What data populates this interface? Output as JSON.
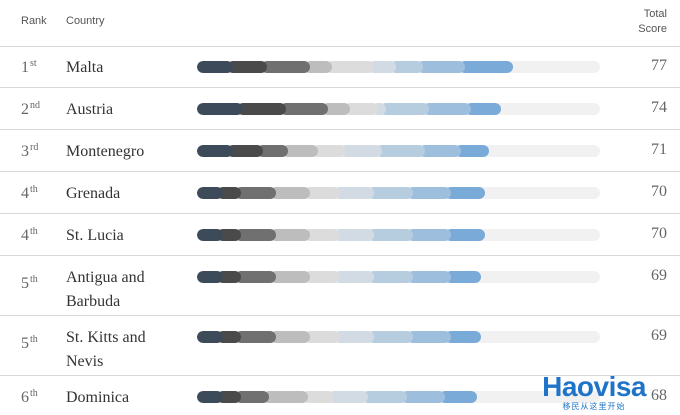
{
  "header": {
    "rank": "Rank",
    "country": "Country",
    "total_line1": "Total",
    "total_line2": "Score"
  },
  "colors": [
    "#3d4a5a",
    "#4a4a4a",
    "#707070",
    "#bdbdbd",
    "#dcdcdc",
    "#d2dbe3",
    "#b6cde0",
    "#9dbfdd",
    "#7aaad8"
  ],
  "chart_data": {
    "type": "bar",
    "max_score": 100,
    "rows": [
      {
        "rank": "1",
        "suffix": "st",
        "country": [
          "Malta"
        ],
        "score": "77",
        "value": 77,
        "segments": [
          7.5,
          8.5,
          10.5,
          5.5,
          10.5,
          5.5,
          6.5,
          10.5,
          12
        ]
      },
      {
        "rank": "2",
        "suffix": "nd",
        "country": [
          "Austria"
        ],
        "score": "74",
        "value": 74,
        "segments": [
          10,
          10.5,
          10.5,
          5.5,
          7,
          2,
          10.5,
          10.5,
          7.5
        ]
      },
      {
        "rank": "3",
        "suffix": "rd",
        "country": [
          "Montenegro"
        ],
        "score": "71",
        "value": 71,
        "segments": [
          7.5,
          7.5,
          6,
          7.5,
          7,
          9,
          10.5,
          9,
          7
        ]
      },
      {
        "rank": "4",
        "suffix": "th",
        "country": [
          "Grenada"
        ],
        "score": "70",
        "value": 70,
        "segments": [
          5,
          4.5,
          8.5,
          8.5,
          7.5,
          8.5,
          9.5,
          9.5,
          8.5
        ]
      },
      {
        "rank": "4",
        "suffix": "th",
        "country": [
          "St. Lucia"
        ],
        "score": "70",
        "value": 70,
        "segments": [
          5,
          4.5,
          8.5,
          8.5,
          7.5,
          8.5,
          9.5,
          9.5,
          8.5
        ]
      },
      {
        "rank": "5",
        "suffix": "th",
        "country": [
          "Antigua and",
          "Barbuda"
        ],
        "score": "69",
        "value": 69,
        "segments": [
          5,
          4.5,
          8.5,
          8.5,
          7.5,
          8.5,
          9.5,
          9.5,
          7.5
        ]
      },
      {
        "rank": "5",
        "suffix": "th",
        "country": [
          "St. Kitts and",
          "Nevis"
        ],
        "score": "69",
        "value": 69,
        "segments": [
          5,
          4.5,
          8.5,
          8.5,
          7.5,
          8.5,
          9.5,
          9.5,
          7.5
        ]
      },
      {
        "rank": "6",
        "suffix": "th",
        "country": [
          "Dominica"
        ],
        "score": "68",
        "value": 68,
        "segments": [
          5,
          4.5,
          7,
          9.5,
          6.5,
          8.5,
          9.5,
          9.5,
          8
        ]
      }
    ]
  },
  "watermark": {
    "main": "Haovisa",
    "sub": "移民从这里开始"
  }
}
